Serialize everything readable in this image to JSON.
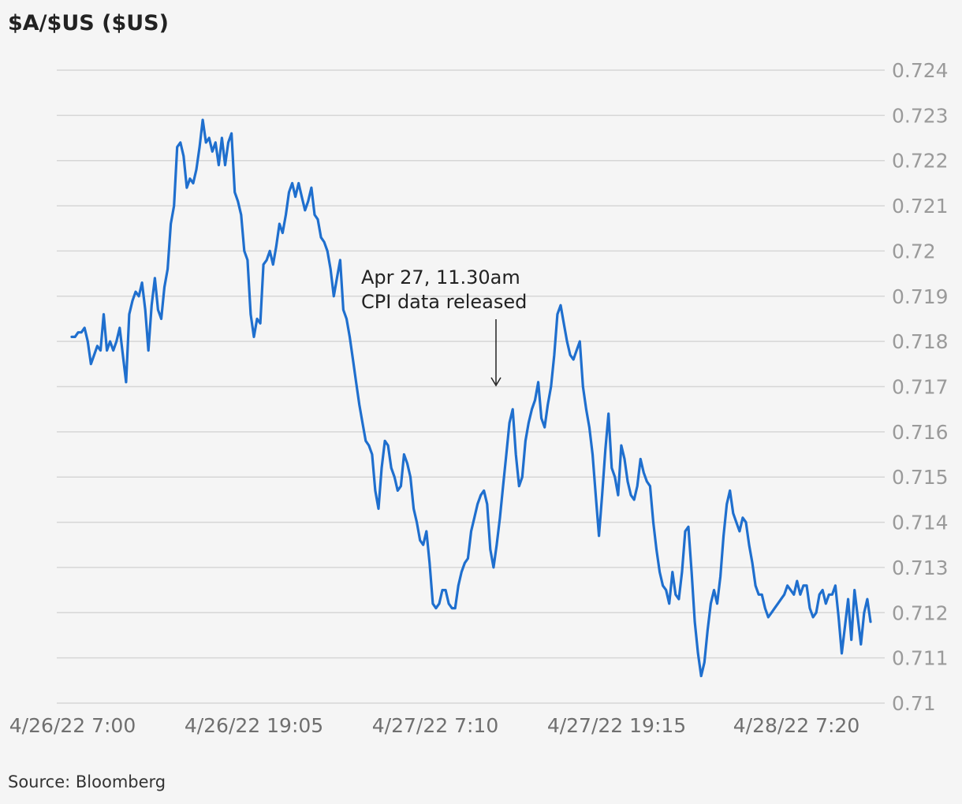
{
  "chart_data": {
    "type": "line",
    "title": "$A/$US ($US)",
    "source": "Source: Bloomberg",
    "xlabel": "",
    "ylabel": "",
    "ylim": [
      0.71,
      0.724
    ],
    "yticks": [
      "0.71",
      "0.711",
      "0.712",
      "0.713",
      "0.714",
      "0.715",
      "0.716",
      "0.717",
      "0.718",
      "0.719",
      "0.72",
      "0.721",
      "0.722",
      "0.723",
      "0.724"
    ],
    "xtick_labels": [
      "4/26/22 7:00",
      "4/26/22 19:05",
      "4/27/22 7:10",
      "4/27/22 19:15",
      "4/28/22 7:20"
    ],
    "grid": true,
    "legend": "none",
    "line_color": "#1f6fce",
    "annotation": {
      "line1": "Apr 27, 11.30am",
      "line2": "CPI data released",
      "x_index": 108
    },
    "series": [
      {
        "values": [
          0.7181,
          0.7181,
          0.7182,
          0.7182,
          0.7183,
          0.718,
          0.7175,
          0.7177,
          0.7179,
          0.7178,
          0.7186,
          0.7178,
          0.718,
          0.7178,
          0.718,
          0.7183,
          0.7177,
          0.7171,
          0.7186,
          0.7189,
          0.7191,
          0.719,
          0.7193,
          0.7187,
          0.7178,
          0.7188,
          0.7194,
          0.7187,
          0.7185,
          0.7192,
          0.7196,
          0.7206,
          0.721,
          0.7223,
          0.7224,
          0.7221,
          0.7214,
          0.7216,
          0.7215,
          0.7218,
          0.7223,
          0.7229,
          0.7224,
          0.7225,
          0.7222,
          0.7224,
          0.7219,
          0.7225,
          0.7219,
          0.7224,
          0.7226,
          0.7213,
          0.7211,
          0.7208,
          0.72,
          0.7198,
          0.7186,
          0.7181,
          0.7185,
          0.7184,
          0.7197,
          0.7198,
          0.72,
          0.7197,
          0.7201,
          0.7206,
          0.7204,
          0.7208,
          0.7213,
          0.7215,
          0.7212,
          0.7215,
          0.7212,
          0.7209,
          0.7211,
          0.7214,
          0.7208,
          0.7207,
          0.7203,
          0.7202,
          0.72,
          0.7196,
          0.719,
          0.7194,
          0.7198,
          0.7187,
          0.7185,
          0.7181,
          0.7176,
          0.7171,
          0.7166,
          0.7162,
          0.7158,
          0.7157,
          0.7155,
          0.7147,
          0.7143,
          0.7152,
          0.7158,
          0.7157,
          0.7152,
          0.715,
          0.7147,
          0.7148,
          0.7155,
          0.7153,
          0.715,
          0.7143,
          0.714,
          0.7136,
          0.7135,
          0.7138,
          0.7131,
          0.7122,
          0.7121,
          0.7122,
          0.7125,
          0.7125,
          0.7122,
          0.7121,
          0.7121,
          0.7126,
          0.7129,
          0.7131,
          0.7132,
          0.7138,
          0.7141,
          0.7144,
          0.7146,
          0.7147,
          0.7144,
          0.7134,
          0.713,
          0.7135,
          0.7141,
          0.7148,
          0.7155,
          0.7162,
          0.7165,
          0.7155,
          0.7148,
          0.715,
          0.7158,
          0.7162,
          0.7165,
          0.7167,
          0.7171,
          0.7163,
          0.7161,
          0.7166,
          0.717,
          0.7177,
          0.7186,
          0.7188,
          0.7184,
          0.718,
          0.7177,
          0.7176,
          0.7178,
          0.718,
          0.717,
          0.7165,
          0.7161,
          0.7155,
          0.7146,
          0.7137,
          0.7146,
          0.7156,
          0.7164,
          0.7152,
          0.715,
          0.7146,
          0.7157,
          0.7154,
          0.7149,
          0.7146,
          0.7145,
          0.7148,
          0.7154,
          0.7151,
          0.7149,
          0.7148,
          0.714,
          0.7134,
          0.7129,
          0.7126,
          0.7125,
          0.7122,
          0.7129,
          0.7124,
          0.7123,
          0.7129,
          0.7138,
          0.7139,
          0.7129,
          0.7118,
          0.7111,
          0.7106,
          0.7109,
          0.7116,
          0.7122,
          0.7125,
          0.7122,
          0.7128,
          0.7137,
          0.7144,
          0.7147,
          0.7142,
          0.714,
          0.7138,
          0.7141,
          0.714,
          0.7135,
          0.7131,
          0.7126,
          0.7124,
          0.7124,
          0.7121,
          0.7119,
          0.712,
          0.7121,
          0.7122,
          0.7123,
          0.7124,
          0.7126,
          0.7125,
          0.7124,
          0.7127,
          0.7124,
          0.7126,
          0.7126,
          0.7121,
          0.7119,
          0.712,
          0.7124,
          0.7125,
          0.7122,
          0.7124,
          0.7124,
          0.7126,
          0.7119,
          0.7111,
          0.7117,
          0.7123,
          0.7114,
          0.7125,
          0.7119,
          0.7113,
          0.712,
          0.7123,
          0.7118
        ]
      }
    ]
  }
}
